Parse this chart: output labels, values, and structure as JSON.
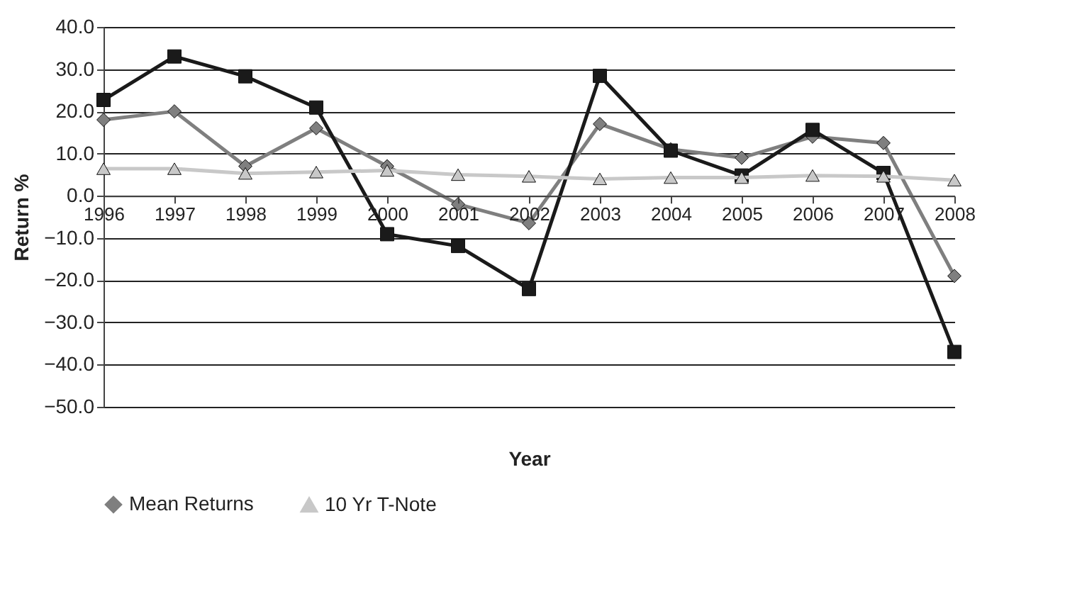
{
  "chart_data": {
    "type": "line",
    "xlabel": "Year",
    "ylabel": "Return %",
    "categories": [
      "1996",
      "1997",
      "1998",
      "1999",
      "2000",
      "2001",
      "2002",
      "2003",
      "2004",
      "2005",
      "2006",
      "2007",
      "2008"
    ],
    "series": [
      {
        "name": "Mean Returns",
        "color": "#7f7f7f",
        "marker": "diamond",
        "values": [
          18,
          20,
          7,
          16,
          7,
          -2,
          -6.5,
          17,
          11,
          9,
          14,
          12.5,
          -19
        ]
      },
      {
        "color": "#1a1a1a",
        "marker": "square",
        "values": [
          22.7,
          33,
          28.3,
          20.9,
          -9.1,
          -11.9,
          -22.1,
          28.4,
          10.7,
          4.8,
          15.6,
          5.4,
          -37
        ]
      },
      {
        "name": "10 Yr T-Note",
        "color": "#c8c8c8",
        "marker": "triangle",
        "values": [
          6.4,
          6.4,
          5.3,
          5.6,
          6.0,
          5.0,
          4.6,
          4.0,
          4.3,
          4.3,
          4.8,
          4.6,
          3.7
        ]
      }
    ],
    "ylim": [
      -50,
      40
    ],
    "yticks": [
      {
        "value": -50,
        "label": "−50.0"
      },
      {
        "value": -40,
        "label": "−40.0"
      },
      {
        "value": -30,
        "label": "−30.0"
      },
      {
        "value": -20,
        "label": "−20.0"
      },
      {
        "value": -10,
        "label": "−10.0"
      },
      {
        "value": 0,
        "label": "0.0"
      },
      {
        "value": 10,
        "label": "10.0"
      },
      {
        "value": 20,
        "label": "20.0"
      },
      {
        "value": 30,
        "label": "30.0"
      },
      {
        "value": 40,
        "label": "40.0"
      }
    ],
    "grid": "y",
    "legend": "bottom",
    "line_style": "solid"
  }
}
